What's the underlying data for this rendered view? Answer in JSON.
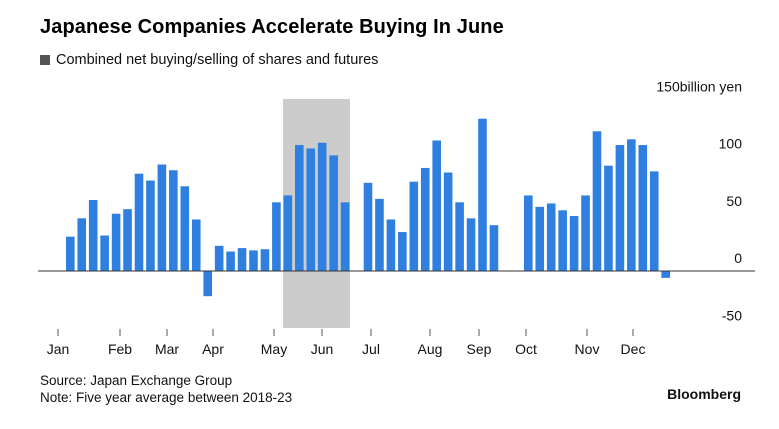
{
  "title": "Japanese Companies Accelerate Buying In June",
  "legend": {
    "label": "Combined net buying/selling of shares and futures",
    "color": "#555555"
  },
  "footer": {
    "source": "Source: Japan Exchange Group",
    "note": "Note: Five year average between 2018-23",
    "brand": "Bloomberg"
  },
  "chart_data": {
    "type": "bar",
    "ylabel": "billion yen",
    "ylim": [
      -50,
      150
    ],
    "yticks": [
      {
        "value": 150,
        "label": "150billion yen"
      },
      {
        "value": 100,
        "label": "100"
      },
      {
        "value": 50,
        "label": "50"
      },
      {
        "value": 0,
        "label": "0"
      },
      {
        "value": -50,
        "label": "-50"
      }
    ],
    "months": [
      "Jan",
      "Feb",
      "Mar",
      "Apr",
      "May",
      "Jun",
      "Jul",
      "Aug",
      "Sep",
      "Oct",
      "Nov",
      "Dec"
    ],
    "highlight": {
      "month": "Jun",
      "color": "#cccccc"
    },
    "bar_color": "#2f7fe0",
    "weeks_per_month": 4.35,
    "series": [
      {
        "values": [
          30,
          46,
          62,
          31,
          50,
          54,
          85,
          79,
          93,
          88,
          74,
          45,
          -22,
          22,
          17,
          20,
          18,
          19,
          60,
          66,
          110,
          107,
          112,
          101,
          60,
          0,
          77,
          63,
          45,
          34,
          78,
          90,
          114,
          86,
          60,
          46,
          133,
          40,
          0,
          0,
          66,
          56,
          59,
          53,
          48,
          66,
          122,
          92,
          110,
          115,
          110,
          87,
          -6
        ]
      }
    ]
  }
}
